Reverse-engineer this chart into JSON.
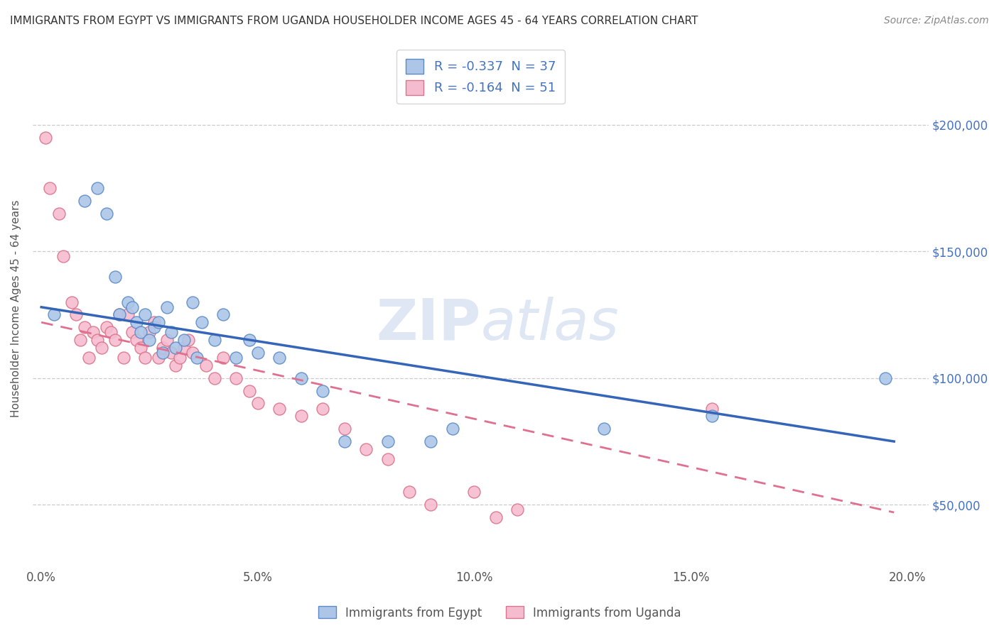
{
  "title": "IMMIGRANTS FROM EGYPT VS IMMIGRANTS FROM UGANDA HOUSEHOLDER INCOME AGES 45 - 64 YEARS CORRELATION CHART",
  "source": "Source: ZipAtlas.com",
  "ylabel": "Householder Income Ages 45 - 64 years",
  "xlim": [
    -0.002,
    0.205
  ],
  "ylim": [
    25000,
    230000
  ],
  "yticks": [
    50000,
    100000,
    150000,
    200000
  ],
  "ytick_labels": [
    "$50,000",
    "$100,000",
    "$150,000",
    "$200,000"
  ],
  "xticks": [
    0.0,
    0.05,
    0.1,
    0.15,
    0.2
  ],
  "xtick_labels": [
    "0.0%",
    "5.0%",
    "10.0%",
    "15.0%",
    "20.0%"
  ],
  "watermark": "ZIPatlas",
  "legend_labels": [
    "Immigrants from Egypt",
    "Immigrants from Uganda"
  ],
  "egypt_R": -0.337,
  "egypt_N": 37,
  "uganda_R": -0.164,
  "uganda_N": 51,
  "egypt_color": "#adc6e8",
  "uganda_color": "#f5bcd0",
  "egypt_edge_color": "#5b8bc7",
  "uganda_edge_color": "#d9748a",
  "egypt_line_color": "#3565b8",
  "uganda_line_color": "#e07090",
  "background_color": "#ffffff",
  "grid_color": "#cccccc",
  "egypt_scatter_x": [
    0.003,
    0.01,
    0.013,
    0.015,
    0.017,
    0.018,
    0.02,
    0.021,
    0.022,
    0.023,
    0.024,
    0.025,
    0.026,
    0.027,
    0.028,
    0.029,
    0.03,
    0.031,
    0.033,
    0.035,
    0.036,
    0.037,
    0.04,
    0.042,
    0.045,
    0.048,
    0.05,
    0.055,
    0.06,
    0.065,
    0.07,
    0.08,
    0.09,
    0.095,
    0.13,
    0.155,
    0.195
  ],
  "egypt_scatter_y": [
    125000,
    170000,
    175000,
    165000,
    140000,
    125000,
    130000,
    128000,
    122000,
    118000,
    125000,
    115000,
    120000,
    122000,
    110000,
    128000,
    118000,
    112000,
    115000,
    130000,
    108000,
    122000,
    115000,
    125000,
    108000,
    115000,
    110000,
    108000,
    100000,
    95000,
    75000,
    75000,
    75000,
    80000,
    80000,
    85000,
    100000
  ],
  "uganda_scatter_x": [
    0.001,
    0.002,
    0.004,
    0.005,
    0.007,
    0.008,
    0.009,
    0.01,
    0.011,
    0.012,
    0.013,
    0.014,
    0.015,
    0.016,
    0.017,
    0.018,
    0.019,
    0.02,
    0.021,
    0.022,
    0.023,
    0.024,
    0.025,
    0.026,
    0.027,
    0.028,
    0.029,
    0.03,
    0.031,
    0.032,
    0.033,
    0.034,
    0.035,
    0.038,
    0.04,
    0.042,
    0.045,
    0.048,
    0.05,
    0.055,
    0.06,
    0.065,
    0.07,
    0.075,
    0.08,
    0.085,
    0.09,
    0.1,
    0.105,
    0.11,
    0.155
  ],
  "uganda_scatter_y": [
    195000,
    175000,
    165000,
    148000,
    130000,
    125000,
    115000,
    120000,
    108000,
    118000,
    115000,
    112000,
    120000,
    118000,
    115000,
    125000,
    108000,
    125000,
    118000,
    115000,
    112000,
    108000,
    118000,
    122000,
    108000,
    112000,
    115000,
    110000,
    105000,
    108000,
    112000,
    115000,
    110000,
    105000,
    100000,
    108000,
    100000,
    95000,
    90000,
    88000,
    85000,
    88000,
    80000,
    72000,
    68000,
    55000,
    50000,
    55000,
    45000,
    48000,
    88000
  ],
  "egypt_line_x": [
    0.0,
    0.197
  ],
  "egypt_line_y": [
    128000,
    75000
  ],
  "uganda_line_x": [
    0.0,
    0.197
  ],
  "uganda_line_y": [
    122000,
    47000
  ]
}
